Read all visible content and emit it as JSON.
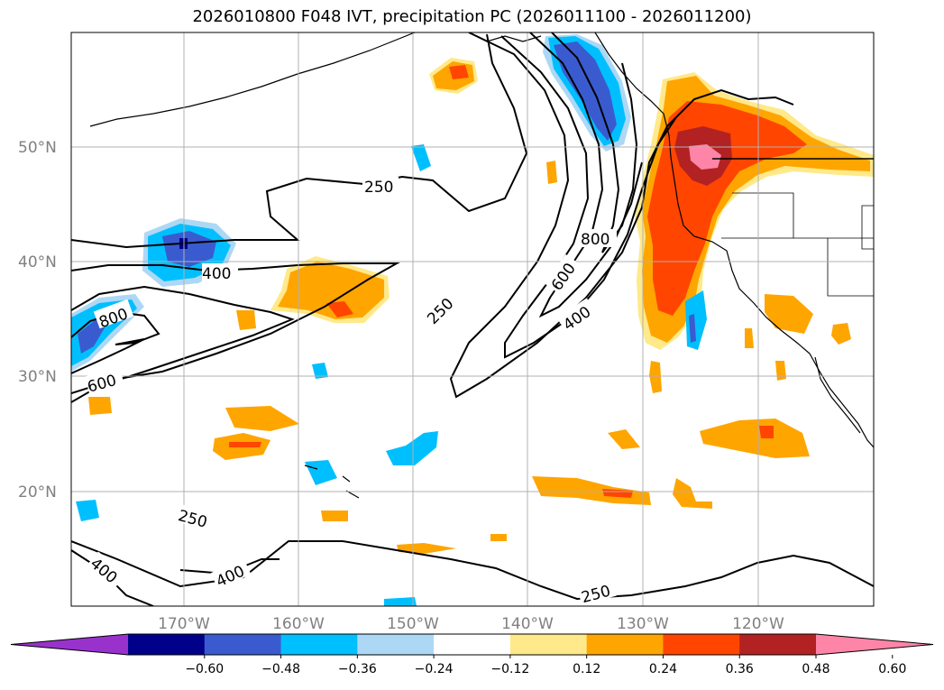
{
  "chart_data": {
    "type": "heatmap",
    "title": "2026010800 F048 IVT, precipitation PC (2026011100 - 2026011200)",
    "projection": "lat-lon map",
    "lon_range": [
      -180,
      -110
    ],
    "lat_range": [
      10,
      60
    ],
    "grid": true,
    "x_ticks": [
      "170°W",
      "160°W",
      "150°W",
      "140°W",
      "130°W",
      "120°W"
    ],
    "x_tick_values": [
      -170,
      -160,
      -150,
      -140,
      -130,
      -120
    ],
    "y_ticks": [
      "20°N",
      "30°N",
      "40°N",
      "50°N"
    ],
    "y_tick_values": [
      20,
      30,
      40,
      50
    ],
    "filled_field": "precipitation PC",
    "contour_field": "IVT",
    "contour_levels": [
      250,
      400,
      600,
      800
    ],
    "contour_labels": [
      "250",
      "400",
      "600",
      "800"
    ],
    "colorbar": {
      "extend": "both",
      "ticks": [
        "−0.60",
        "−0.48",
        "−0.36",
        "−0.24",
        "−0.12",
        "0.12",
        "0.24",
        "0.36",
        "0.48",
        "0.60"
      ],
      "bins": [
        {
          "from": null,
          "to": -0.6,
          "color": "#9932cc"
        },
        {
          "from": -0.6,
          "to": -0.48,
          "color": "#00008b"
        },
        {
          "from": -0.48,
          "to": -0.36,
          "color": "#3a5bcf"
        },
        {
          "from": -0.36,
          "to": -0.24,
          "color": "#00bfff"
        },
        {
          "from": -0.24,
          "to": -0.12,
          "color": "#add8f5"
        },
        {
          "from": -0.12,
          "to": 0.12,
          "color": "#ffffff"
        },
        {
          "from": 0.12,
          "to": 0.24,
          "color": "#ffe98a"
        },
        {
          "from": 0.24,
          "to": 0.36,
          "color": "#ffa500"
        },
        {
          "from": 0.36,
          "to": 0.48,
          "color": "#ff4500"
        },
        {
          "from": 0.48,
          "to": 0.6,
          "color": "#b22222"
        },
        {
          "from": 0.6,
          "to": null,
          "color": "#ff85a8"
        }
      ]
    },
    "features": {
      "atmospheric_river_core_lon": -126,
      "atmospheric_river_core_lat": 48,
      "max_positive_region": "Pacific Northwest coast",
      "negative_region": "Gulf of Alaska / British Columbia coast"
    }
  }
}
